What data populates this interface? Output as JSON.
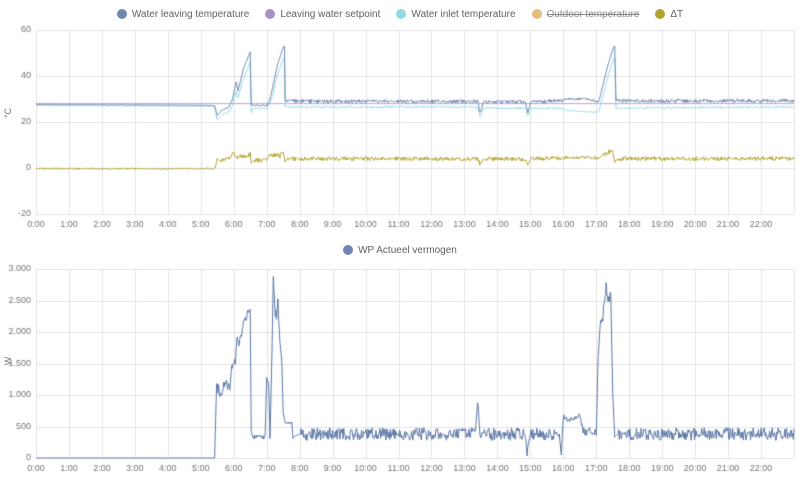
{
  "accent_color": "#5b77a5",
  "chart_data": [
    {
      "type": "line",
      "ylabel": "°C",
      "xlabel": "",
      "ymin": -20,
      "ymax": 60,
      "xmin": 0,
      "xmax": 23,
      "grid": true,
      "legend_position": "top",
      "yticks": [
        {
          "v": -20,
          "label": "-20"
        },
        {
          "v": 0,
          "label": "0"
        },
        {
          "v": 20,
          "label": "20"
        },
        {
          "v": 40,
          "label": "40"
        },
        {
          "v": 60,
          "label": "60"
        }
      ],
      "xticks": [
        "0:00",
        "1:00",
        "2:00",
        "3:00",
        "4:00",
        "5:00",
        "6:00",
        "7:00",
        "8:00",
        "9:00",
        "10:00",
        "11:00",
        "12:00",
        "13:00",
        "14:00",
        "15:00",
        "16:00",
        "17:00",
        "18:00",
        "19:00",
        "20:00",
        "21:00",
        "22:00"
      ],
      "legend": [
        {
          "label": "Water leaving temperature",
          "color": "#6f87b0",
          "enabled": true
        },
        {
          "label": "Leaving water setpoint",
          "color": "#a98fcb",
          "enabled": true
        },
        {
          "label": "Water inlet temperature",
          "color": "#93d9e4",
          "enabled": true
        },
        {
          "label": "Outdoor temperature",
          "color": "#e3b168",
          "enabled": false
        },
        {
          "label": "ΔT",
          "color": "#b1a32e",
          "enabled": true
        }
      ],
      "series": [
        {
          "name": "Leaving water setpoint",
          "color": "#a98fcb",
          "points": [
            [
              0,
              28,
              0
            ],
            [
              23,
              28,
              0
            ]
          ]
        },
        {
          "name": "Water inlet temperature",
          "color": "#93d9e4",
          "points": [
            [
              0,
              27.2,
              0.1
            ],
            [
              5.2,
              26.9,
              0.1
            ],
            [
              5.42,
              26.7,
              0
            ],
            [
              5.5,
              21,
              0
            ],
            [
              5.62,
              22.8,
              0.3
            ],
            [
              5.85,
              24.5,
              0.2
            ],
            [
              5.95,
              27,
              0
            ],
            [
              6.08,
              33.5,
              0
            ],
            [
              6.13,
              30.5,
              0
            ],
            [
              6.3,
              39,
              0
            ],
            [
              6.5,
              46,
              0
            ],
            [
              6.53,
              24,
              0
            ],
            [
              6.62,
              26,
              0.3
            ],
            [
              7.02,
              26,
              0
            ],
            [
              7.1,
              28,
              0
            ],
            [
              7.18,
              31.5,
              0
            ],
            [
              7.32,
              40,
              0
            ],
            [
              7.5,
              47.5,
              0
            ],
            [
              7.54,
              48,
              0
            ],
            [
              7.56,
              26.5,
              0.4
            ],
            [
              13.4,
              26.5,
              0.4
            ],
            [
              13.48,
              22.5,
              0
            ],
            [
              13.58,
              26,
              0.4
            ],
            [
              14.85,
              26,
              0.4
            ],
            [
              14.92,
              22.5,
              0
            ],
            [
              15.02,
              26,
              0.4
            ],
            [
              15.95,
              26,
              0.3
            ],
            [
              16.15,
              25,
              0.3
            ],
            [
              16.95,
              24.2,
              0.3
            ],
            [
              17.08,
              24.5,
              0
            ],
            [
              17.2,
              31,
              0
            ],
            [
              17.36,
              40,
              0
            ],
            [
              17.52,
              47.5,
              0
            ],
            [
              17.56,
              48,
              0
            ],
            [
              17.6,
              26,
              0.4
            ],
            [
              23,
              26.6,
              0.4
            ]
          ]
        },
        {
          "name": "Water leaving temperature",
          "color": "#6f87b0",
          "points": [
            [
              0,
              27.6,
              0.12
            ],
            [
              5.2,
              27.3,
              0.12
            ],
            [
              5.42,
              27.1,
              0
            ],
            [
              5.5,
              22.8,
              0
            ],
            [
              5.62,
              25,
              0.3
            ],
            [
              5.85,
              26.5,
              0.2
            ],
            [
              5.95,
              29.5,
              0
            ],
            [
              6.08,
              37.5,
              0
            ],
            [
              6.13,
              33.5,
              0
            ],
            [
              6.3,
              43.5,
              0
            ],
            [
              6.5,
              50.5,
              0
            ],
            [
              6.53,
              27.5,
              0
            ],
            [
              6.62,
              27.3,
              0.4
            ],
            [
              7.02,
              27.2,
              0
            ],
            [
              7.1,
              30,
              0
            ],
            [
              7.18,
              35,
              0
            ],
            [
              7.32,
              44.5,
              0
            ],
            [
              7.5,
              52.5,
              0
            ],
            [
              7.54,
              53,
              0
            ],
            [
              7.56,
              29.5,
              0.8
            ],
            [
              8,
              29,
              0.8
            ],
            [
              13.4,
              29,
              0.8
            ],
            [
              13.48,
              24,
              0
            ],
            [
              13.58,
              28.8,
              0.8
            ],
            [
              14.85,
              28.8,
              0.8
            ],
            [
              14.92,
              24,
              0
            ],
            [
              15.02,
              28.8,
              0.8
            ],
            [
              15.95,
              29.2,
              0.6
            ],
            [
              16.15,
              30,
              0.5
            ],
            [
              16.6,
              30,
              0.5
            ],
            [
              16.95,
              29.3,
              0.6
            ],
            [
              17.08,
              28.8,
              0
            ],
            [
              17.2,
              36,
              0
            ],
            [
              17.36,
              45,
              0
            ],
            [
              17.52,
              52.5,
              0
            ],
            [
              17.56,
              53,
              0
            ],
            [
              17.6,
              29.2,
              0.8
            ],
            [
              23,
              29.2,
              0.8
            ]
          ]
        },
        {
          "name": "ΔT",
          "color": "#b1a32e",
          "points": [
            [
              0,
              -0.3,
              0.35
            ],
            [
              5.3,
              -0.3,
              0.35
            ],
            [
              5.44,
              0,
              0
            ],
            [
              5.5,
              4.2,
              0
            ],
            [
              5.6,
              2.8,
              0.9
            ],
            [
              5.9,
              4.8,
              0.9
            ],
            [
              6,
              7.3,
              0
            ],
            [
              6.05,
              4.8,
              0.9
            ],
            [
              6.45,
              5.4,
              0.9
            ],
            [
              6.5,
              6.2,
              0
            ],
            [
              6.53,
              2,
              0
            ],
            [
              6.62,
              3.4,
              1
            ],
            [
              7,
              3.5,
              0
            ],
            [
              7.08,
              5.8,
              1
            ],
            [
              7.4,
              5.2,
              1
            ],
            [
              7.5,
              6.8,
              0
            ],
            [
              7.56,
              2.6,
              0
            ],
            [
              7.62,
              4,
              0.9
            ],
            [
              13.4,
              4,
              0.9
            ],
            [
              13.48,
              1.5,
              0
            ],
            [
              13.58,
              4,
              0.9
            ],
            [
              14.85,
              4,
              0.9
            ],
            [
              14.92,
              1.5,
              0
            ],
            [
              15.02,
              4,
              0.9
            ],
            [
              15.95,
              4.3,
              0.7
            ],
            [
              16.6,
              4.8,
              0.7
            ],
            [
              16.95,
              4.4,
              0.7
            ],
            [
              17.08,
              4,
              0
            ],
            [
              17.2,
              6,
              1.1
            ],
            [
              17.5,
              7.4,
              0
            ],
            [
              17.56,
              2.4,
              0
            ],
            [
              17.64,
              4,
              0.9
            ],
            [
              23,
              4.1,
              0.9
            ]
          ]
        }
      ]
    },
    {
      "type": "line",
      "ylabel": "W",
      "xlabel": "",
      "ymin": 0,
      "ymax": 3000,
      "xmin": 0,
      "xmax": 23,
      "grid": true,
      "legend_position": "top",
      "yticks": [
        {
          "v": 0,
          "label": "0"
        },
        {
          "v": 500,
          "label": "500"
        },
        {
          "v": 1000,
          "label": "1.000"
        },
        {
          "v": 1500,
          "label": "1.500"
        },
        {
          "v": 2000,
          "label": "2.000"
        },
        {
          "v": 2500,
          "label": "2.500"
        },
        {
          "v": 3000,
          "label": "3.000"
        }
      ],
      "xticks": [
        "0:00",
        "1:00",
        "2:00",
        "3:00",
        "4:00",
        "5:00",
        "6:00",
        "7:00",
        "8:00",
        "9:00",
        "10:00",
        "11:00",
        "12:00",
        "13:00",
        "14:00",
        "15:00",
        "16:00",
        "17:00",
        "18:00",
        "19:00",
        "20:00",
        "21:00",
        "22:00"
      ],
      "legend": [
        {
          "label": "WP Actueel vermogen",
          "color": "#6f87b0",
          "enabled": true
        }
      ],
      "series": [
        {
          "name": "WP Actueel vermogen",
          "color": "#5b77a5",
          "points": [
            [
              0,
              0,
              0
            ],
            [
              5.42,
              0,
              0
            ],
            [
              5.48,
              1180,
              90
            ],
            [
              5.6,
              980,
              70
            ],
            [
              5.75,
              1230,
              80
            ],
            [
              5.88,
              1080,
              0
            ],
            [
              5.94,
              1470,
              60
            ],
            [
              6.05,
              1540,
              0
            ],
            [
              6.1,
              1920,
              0
            ],
            [
              6.16,
              1780,
              60
            ],
            [
              6.3,
              2120,
              70
            ],
            [
              6.45,
              2320,
              0
            ],
            [
              6.5,
              2360,
              0
            ],
            [
              6.53,
              420,
              0
            ],
            [
              6.58,
              330,
              35
            ],
            [
              6.95,
              330,
              35
            ],
            [
              7,
              1260,
              0
            ],
            [
              7.06,
              1180,
              0
            ],
            [
              7.1,
              310,
              0
            ],
            [
              7.16,
              1680,
              0
            ],
            [
              7.2,
              2880,
              0
            ],
            [
              7.26,
              2250,
              120
            ],
            [
              7.34,
              2430,
              0
            ],
            [
              7.4,
              1850,
              0
            ],
            [
              7.46,
              1520,
              0
            ],
            [
              7.5,
              720,
              0
            ],
            [
              7.56,
              560,
              30
            ],
            [
              7.76,
              545,
              20
            ],
            [
              7.8,
              330,
              0
            ],
            [
              8,
              380,
              100
            ],
            [
              13.33,
              380,
              100
            ],
            [
              13.4,
              950,
              0
            ],
            [
              13.47,
              380,
              100
            ],
            [
              14.83,
              380,
              100
            ],
            [
              14.9,
              110,
              0
            ],
            [
              15,
              380,
              100
            ],
            [
              15.88,
              380,
              70
            ],
            [
              15.94,
              90,
              0
            ],
            [
              16,
              640,
              50
            ],
            [
              16.25,
              610,
              45
            ],
            [
              16.5,
              675,
              45
            ],
            [
              16.6,
              430,
              70
            ],
            [
              17,
              410,
              70
            ],
            [
              17.06,
              1620,
              0
            ],
            [
              17.12,
              2120,
              120
            ],
            [
              17.22,
              2320,
              150
            ],
            [
              17.3,
              2700,
              0
            ],
            [
              17.36,
              2480,
              120
            ],
            [
              17.44,
              2620,
              0
            ],
            [
              17.5,
              1020,
              0
            ],
            [
              17.56,
              330,
              0
            ],
            [
              17.66,
              380,
              100
            ],
            [
              23,
              380,
              100
            ]
          ]
        }
      ]
    }
  ]
}
